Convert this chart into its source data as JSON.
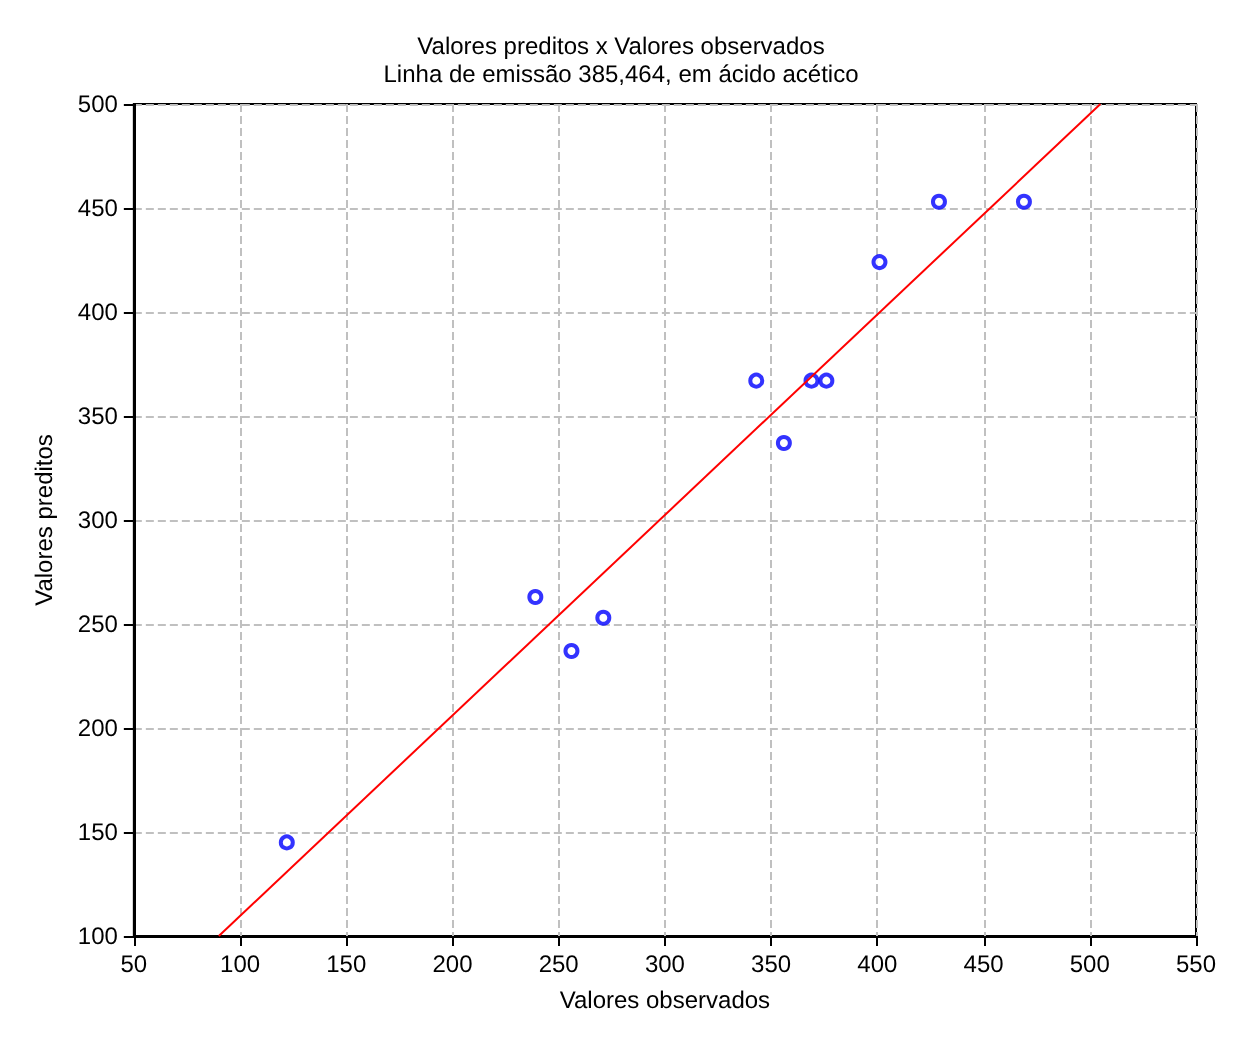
{
  "chart_data": {
    "type": "scatter",
    "title": "Valores preditos x Valores observados",
    "subtitle": "Linha de emissão 385,464, em ácido acético",
    "xlabel": "Valores observados",
    "ylabel": "Valores preditos",
    "xlim": [
      50,
      550
    ],
    "xticks": [
      50,
      100,
      150,
      200,
      250,
      300,
      350,
      400,
      450,
      500,
      550
    ],
    "ylim": [
      100,
      500
    ],
    "yticks": [
      100,
      150,
      200,
      250,
      300,
      350,
      400,
      450,
      500
    ],
    "grid": true,
    "marker": "circle",
    "series": [
      {
        "color": "#0000ff",
        "x": [
          122,
          239,
          256,
          271,
          343,
          356,
          369,
          376,
          401,
          429,
          469
        ],
        "values": [
          145,
          263,
          237,
          253,
          367,
          337,
          367,
          367,
          424,
          453,
          453
        ]
      },
      {
        "type": "line",
        "color": "#ff0000",
        "marker": "none",
        "x": [
          90,
          505
        ],
        "values": [
          100,
          500
        ]
      }
    ]
  }
}
